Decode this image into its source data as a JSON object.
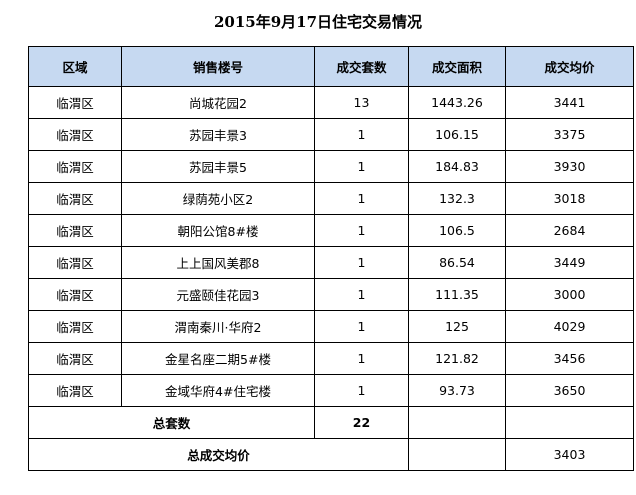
{
  "title": "2015年9月17日住宅交易情况",
  "headers": [
    "区域",
    "销售楼号",
    "成交套数",
    "成交面积",
    "成交均价"
  ],
  "rows": [
    [
      "临渭区",
      "尚城花园2",
      "13",
      "1443.26",
      "3441"
    ],
    [
      "临渭区",
      "苏园丰景3",
      "1",
      "106.15",
      "3375"
    ],
    [
      "临渭区",
      "苏园丰景5",
      "1",
      "184.83",
      "3930"
    ],
    [
      "临渭区",
      "绿荫苑小区2",
      "1",
      "132.3",
      "3018"
    ],
    [
      "临渭区",
      "朝阳公馆8#楼",
      "1",
      "106.5",
      "2684"
    ],
    [
      "临渭区",
      "上上国风美郡8",
      "1",
      "86.54",
      "3449"
    ],
    [
      "临渭区",
      "元盛颐佳花园3",
      "1",
      "111.35",
      "3000"
    ],
    [
      "临渭区",
      "渭南秦川·华府2",
      "1",
      "125",
      "4029"
    ],
    [
      "临渭区",
      "金星名座二期5#楼",
      "1",
      "121.82",
      "3456"
    ],
    [
      "临渭区",
      "金域华府4#住宅楼",
      "1",
      "93.73",
      "3650"
    ]
  ],
  "total_units_label": "总套数",
  "total_units_value": "22",
  "avg_price_label": "总成交均价",
  "avg_price_value": "3403"
}
